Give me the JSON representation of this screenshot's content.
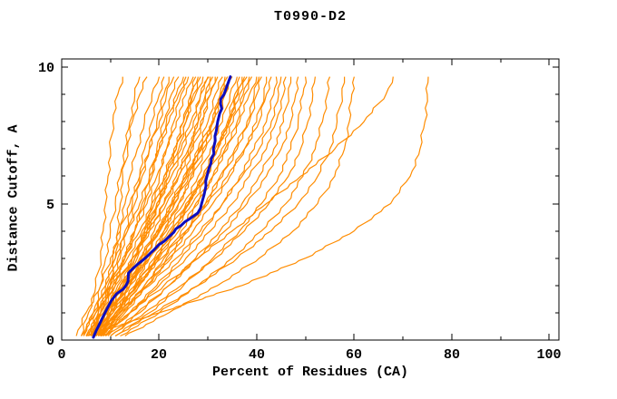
{
  "window": {
    "background": "#ffffff"
  },
  "chart_data": {
    "type": "line",
    "title": "T0990-D2",
    "xlabel": "Percent of Residues (CA)",
    "ylabel": "Distance Cutoff, A",
    "xlim": [
      0,
      102
    ],
    "ylim": [
      0,
      10.3
    ],
    "x_major_ticks": [
      0,
      20,
      40,
      60,
      80,
      100
    ],
    "x_minor_ticks": [
      10,
      30,
      50,
      70,
      90
    ],
    "y_major_ticks": [
      0,
      5,
      10
    ],
    "y_minor_ticks": [
      1,
      2,
      3,
      4,
      6,
      7,
      8,
      9
    ],
    "grid": false,
    "legend": "none",
    "axis_color": "#000000",
    "highlight_series": {
      "name": "highlighted-model",
      "color": "#0d0dbe",
      "line_width": 3,
      "points": [
        [
          6.5,
          0.1
        ],
        [
          7.1,
          0.35
        ],
        [
          7.8,
          0.6
        ],
        [
          8.6,
          0.9
        ],
        [
          9.3,
          1.15
        ],
        [
          10.2,
          1.45
        ],
        [
          11.3,
          1.7
        ],
        [
          12.5,
          1.85
        ],
        [
          13.2,
          2.0
        ],
        [
          13.6,
          2.15
        ],
        [
          13.7,
          2.45
        ],
        [
          14.2,
          2.55
        ],
        [
          14.8,
          2.65
        ],
        [
          15.6,
          2.78
        ],
        [
          16.6,
          2.92
        ],
        [
          17.5,
          3.06
        ],
        [
          18.4,
          3.22
        ],
        [
          19.0,
          3.32
        ],
        [
          19.9,
          3.49
        ],
        [
          21.8,
          3.75
        ],
        [
          23.0,
          3.95
        ],
        [
          24.5,
          4.2
        ],
        [
          26.3,
          4.45
        ],
        [
          27.9,
          4.65
        ],
        [
          28.7,
          5.0
        ],
        [
          29.2,
          5.32
        ],
        [
          29.6,
          5.65
        ],
        [
          29.8,
          6.0
        ],
        [
          30.2,
          6.3
        ],
        [
          30.7,
          6.65
        ],
        [
          31.1,
          7.0
        ],
        [
          31.5,
          7.3
        ],
        [
          31.7,
          7.65
        ],
        [
          32.0,
          8.0
        ],
        [
          32.4,
          8.3
        ],
        [
          32.6,
          8.65
        ],
        [
          33.3,
          9.0
        ],
        [
          33.9,
          9.3
        ],
        [
          34.6,
          9.65
        ]
      ]
    },
    "model_series_color": "#ff8c00",
    "model_series_line_width": 1.2,
    "y_levels": [
      0.15,
      1,
      2,
      3,
      4,
      5,
      6,
      7,
      8,
      9,
      9.65
    ],
    "model_series_x_at_levels": [
      [
        4,
        5.5,
        7,
        8,
        8.5,
        9,
        9.5,
        10,
        10.5,
        11.5,
        12.5
      ],
      [
        4.5,
        6.5,
        8,
        9,
        10,
        11,
        12,
        13,
        14,
        15,
        16
      ],
      [
        6,
        8,
        10,
        11,
        11.5,
        12,
        12.5,
        13.5,
        14.5,
        16,
        17.5
      ],
      [
        5.5,
        7,
        9,
        10.5,
        12,
        13,
        14,
        15.5,
        17,
        18.5,
        20
      ],
      [
        6,
        7.5,
        9.5,
        11.5,
        13,
        14.5,
        16,
        17,
        18.5,
        20,
        21
      ],
      [
        6.5,
        8,
        10,
        12,
        13.5,
        15,
        16.5,
        18,
        19.5,
        21,
        22
      ],
      [
        3,
        5,
        8,
        10,
        12,
        14,
        16,
        18,
        20,
        21.5,
        23
      ],
      [
        7,
        9,
        11,
        13,
        15,
        16.5,
        18,
        19.5,
        21,
        22.5,
        24
      ],
      [
        6,
        8,
        10.5,
        13,
        15,
        17,
        18.5,
        20,
        21.5,
        23.5,
        25
      ],
      [
        7.5,
        10,
        12.5,
        15,
        17,
        18.5,
        20,
        21.5,
        23,
        24.5,
        25.5
      ],
      [
        4.5,
        6.5,
        9,
        11,
        13.5,
        16,
        18,
        20,
        22,
        24,
        26
      ],
      [
        6,
        8,
        10,
        12.5,
        15,
        17.5,
        19.5,
        21.5,
        23.5,
        25.5,
        27
      ],
      [
        8,
        10,
        13,
        15.5,
        17.5,
        19.5,
        21.5,
        23.5,
        25,
        26.5,
        27.5
      ],
      [
        6.5,
        9,
        12,
        14.5,
        17,
        19,
        21,
        23,
        25,
        26.5,
        28
      ],
      [
        7,
        9.5,
        12,
        15,
        17.5,
        20,
        22,
        24,
        25.5,
        27,
        28.5
      ],
      [
        4,
        7,
        10,
        13,
        16,
        18.5,
        21,
        23.5,
        25.5,
        27.5,
        29
      ],
      [
        6,
        8.5,
        11.5,
        14.5,
        17.5,
        20,
        22.5,
        25,
        27,
        28.5,
        30
      ],
      [
        5,
        7.5,
        10.5,
        13.5,
        16.5,
        19.5,
        22,
        24.5,
        26.5,
        28.5,
        30.2
      ],
      [
        7.5,
        10.5,
        13.5,
        16.5,
        19,
        21.5,
        24,
        26,
        28,
        29.5,
        30.5
      ],
      [
        6.5,
        9,
        12,
        15,
        18,
        21,
        23.5,
        26,
        28,
        29.5,
        31
      ],
      [
        8,
        11,
        14,
        17,
        20,
        22.5,
        25,
        27,
        29,
        30.5,
        31.5
      ],
      [
        5,
        8,
        11,
        14.5,
        18,
        21,
        24,
        26.5,
        28.5,
        30.5,
        32
      ],
      [
        7,
        10,
        13.5,
        17,
        20,
        23,
        25.5,
        28,
        30,
        31.5,
        33
      ],
      [
        8.5,
        11.5,
        15,
        18,
        21,
        24,
        26.5,
        29,
        31,
        32.5,
        33.5
      ],
      [
        6,
        9,
        12.5,
        16,
        19.5,
        22.5,
        25.5,
        28.5,
        31,
        32.5,
        34
      ],
      [
        6.8,
        9.8,
        13.2,
        16.8,
        20.2,
        23.2,
        26,
        28.8,
        31.2,
        33.2,
        34.5
      ],
      [
        6.2,
        9.2,
        12.8,
        16.2,
        19.8,
        22.8,
        25.8,
        28.2,
        30.8,
        32.8,
        34.8
      ],
      [
        7,
        10.5,
        14,
        17.5,
        21,
        24,
        27,
        29.5,
        32,
        33.5,
        35
      ],
      [
        6.5,
        10,
        14,
        18,
        21.5,
        25,
        28,
        30.5,
        33,
        34.5,
        36
      ],
      [
        8,
        12,
        16,
        19.5,
        23,
        26,
        29,
        31.5,
        34,
        35.5,
        36.5
      ],
      [
        7.5,
        11,
        15,
        19,
        22.5,
        26,
        29.5,
        32,
        34.5,
        36,
        37
      ],
      [
        7.8,
        11.2,
        15.2,
        19.2,
        22.8,
        26.2,
        29.2,
        32,
        34.2,
        36.2,
        37.5
      ],
      [
        5.5,
        9.5,
        13.5,
        18,
        22,
        25.5,
        29,
        32,
        34.5,
        36.5,
        38
      ],
      [
        8.2,
        11.8,
        15.8,
        19.8,
        23.2,
        26.8,
        29.8,
        32.8,
        35.2,
        37.2,
        38.5
      ],
      [
        8.5,
        12.5,
        17,
        21,
        24.5,
        28,
        31,
        33.5,
        36,
        37.5,
        39
      ],
      [
        7,
        11,
        15.5,
        20,
        24,
        27.5,
        31,
        34,
        36.5,
        38.5,
        40
      ],
      [
        9,
        13,
        17.5,
        22,
        26,
        29.5,
        32.5,
        35.5,
        38,
        39.5,
        40.5
      ],
      [
        7.5,
        12,
        17,
        21.5,
        25.5,
        29.5,
        33,
        36,
        38.5,
        40,
        41
      ],
      [
        8,
        12.5,
        17.5,
        22.5,
        27,
        31,
        34.5,
        37.5,
        40,
        41.5,
        42
      ],
      [
        6.5,
        10.5,
        15.5,
        20.5,
        25.5,
        30,
        34,
        37.5,
        40.5,
        42,
        43
      ],
      [
        9,
        14,
        19.5,
        24.5,
        29,
        33,
        36.5,
        39.5,
        42,
        43.5,
        44
      ],
      [
        7,
        12,
        18,
        23.5,
        28.5,
        33,
        37,
        40.5,
        43,
        44.5,
        45
      ],
      [
        8.5,
        14,
        20,
        25.5,
        30.5,
        35,
        38.5,
        42,
        44,
        45.5,
        46
      ],
      [
        10,
        16,
        22,
        27.5,
        32.5,
        37,
        40.5,
        43.5,
        45.5,
        46.5,
        47
      ],
      [
        9.5,
        15.5,
        22,
        28,
        33.5,
        38,
        42,
        45,
        47,
        48,
        48.5
      ],
      [
        11,
        18,
        25,
        31,
        36.5,
        41,
        44.5,
        47,
        48.5,
        49.5,
        50
      ],
      [
        10,
        17,
        24.5,
        31.5,
        37.5,
        42.5,
        46.5,
        49,
        50.5,
        51.5,
        52
      ],
      [
        12,
        20,
        28,
        35,
        41,
        46,
        49.5,
        52,
        53.5,
        54.5,
        55
      ],
      [
        11,
        19,
        28,
        36,
        43,
        48.5,
        52.5,
        55,
        56.5,
        57.5,
        58
      ],
      [
        13,
        22,
        32,
        40.5,
        47.5,
        52.5,
        56,
        58,
        59,
        59.5,
        60
      ],
      [
        8,
        14,
        21,
        28,
        35,
        42,
        49,
        56,
        62,
        66.5,
        68
      ],
      [
        5,
        20,
        37,
        50,
        60,
        67.5,
        71.5,
        73.5,
        74.5,
        75,
        75.2
      ]
    ]
  }
}
